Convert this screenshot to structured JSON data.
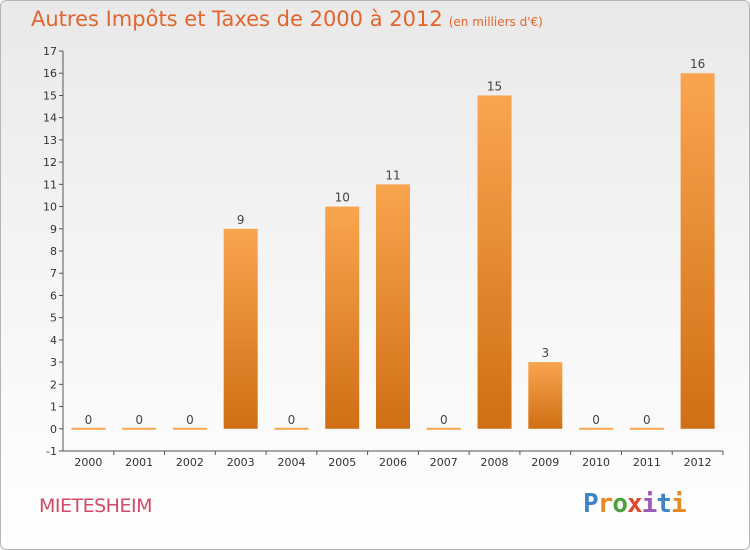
{
  "header": {
    "title": "Autres Impôts et Taxes de 2000 à 2012",
    "subtitle": "(en milliers d'€)"
  },
  "footer": {
    "place": "MIETESHEIM",
    "logo": "Proxiti"
  },
  "colors": {
    "title": "#e3652d",
    "bar_top": "#f9a54f",
    "bar_bottom": "#d06f14",
    "place": "#d24a67",
    "logo_letters": [
      "#3f84c6",
      "#e58b24",
      "#4aa23d",
      "#d94a2f",
      "#9a5bb5",
      "#3f84c6",
      "#e58b24"
    ]
  },
  "chart_data": {
    "type": "bar",
    "title": "Autres Impôts et Taxes de 2000 à 2012",
    "subtitle": "(en milliers d'€)",
    "categories": [
      "2000",
      "2001",
      "2002",
      "2003",
      "2004",
      "2005",
      "2006",
      "2007",
      "2008",
      "2009",
      "2010",
      "2011",
      "2012"
    ],
    "values": [
      0,
      0,
      0,
      9,
      0,
      10,
      11,
      0,
      15,
      3,
      0,
      0,
      16
    ],
    "ylim": [
      -1,
      17
    ],
    "yticks": [
      "-1",
      "0",
      "1",
      "2",
      "3",
      "4",
      "5",
      "6",
      "7",
      "8",
      "9",
      "10",
      "11",
      "12",
      "13",
      "14",
      "15",
      "16",
      "17"
    ],
    "grid": false,
    "data_labels": true
  }
}
